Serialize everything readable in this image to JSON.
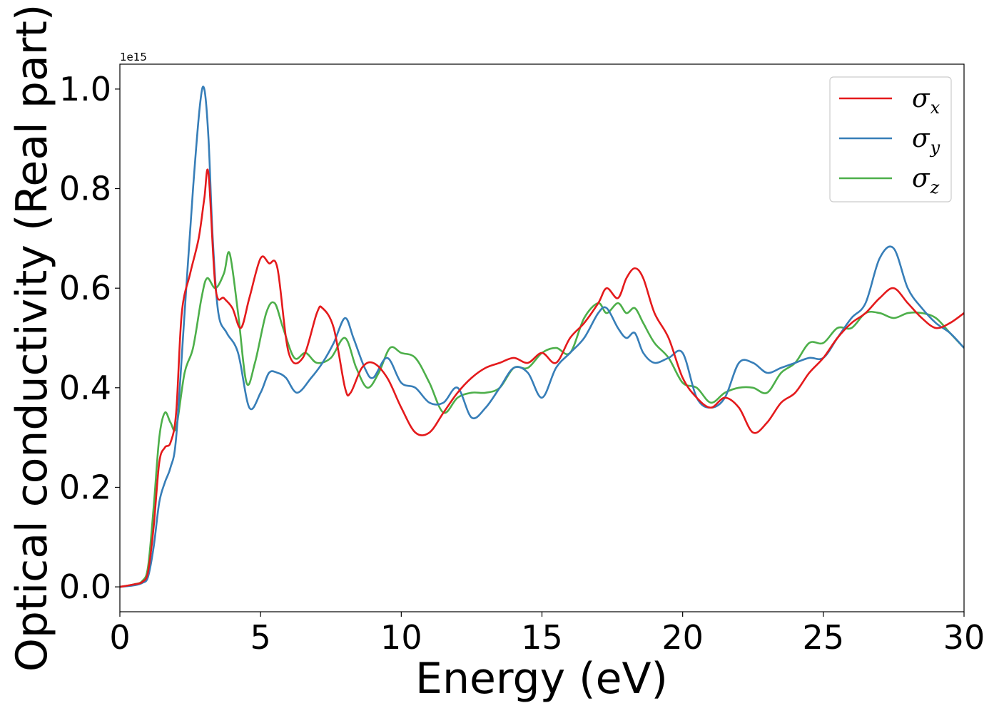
{
  "chart_data": {
    "type": "line",
    "title": "",
    "xlabel": "Energy (eV)",
    "ylabel": "Optical conductivity (Real part)",
    "y_offset_label": "1e15",
    "y_scale": 1000000000000000.0,
    "xlim": [
      0,
      30
    ],
    "ylim": [
      -0.05,
      1.05
    ],
    "xticks": [
      0,
      5,
      10,
      15,
      20,
      25,
      30
    ],
    "xtick_labels": [
      "0",
      "5",
      "10",
      "15",
      "20",
      "25",
      "30"
    ],
    "yticks": [
      0.0,
      0.2,
      0.4,
      0.6,
      0.8,
      1.0
    ],
    "ytick_labels": [
      "0.0",
      "0.2",
      "0.4",
      "0.6",
      "0.8",
      "1.0"
    ],
    "grid": false,
    "legend_position": "top-right",
    "series": [
      {
        "name": "σx",
        "legend_base": "σ",
        "legend_sub": "x",
        "color": "#e41a1c",
        "x": [
          0,
          0.5,
          0.8,
          1.0,
          1.2,
          1.4,
          1.6,
          1.8,
          2.0,
          2.2,
          2.5,
          2.8,
          3.0,
          3.15,
          3.4,
          3.7,
          4.0,
          4.3,
          4.6,
          5.0,
          5.3,
          5.6,
          6.0,
          6.5,
          7.0,
          7.2,
          7.6,
          8.0,
          8.2,
          8.6,
          9.0,
          9.5,
          10.0,
          10.5,
          11.0,
          11.5,
          12.0,
          12.5,
          13.0,
          13.5,
          14.0,
          14.5,
          15.0,
          15.5,
          16.0,
          16.5,
          17.0,
          17.3,
          17.7,
          18.0,
          18.3,
          18.6,
          19.0,
          19.5,
          20.0,
          20.5,
          21.0,
          21.5,
          22.0,
          22.5,
          23.0,
          23.5,
          24.0,
          24.5,
          25.0,
          25.5,
          26.0,
          26.5,
          27.0,
          27.5,
          28.0,
          28.5,
          29.0,
          29.5,
          30.0
        ],
        "y": [
          0,
          0.005,
          0.01,
          0.03,
          0.12,
          0.25,
          0.28,
          0.29,
          0.35,
          0.55,
          0.63,
          0.7,
          0.78,
          0.83,
          0.6,
          0.58,
          0.56,
          0.52,
          0.58,
          0.66,
          0.65,
          0.64,
          0.47,
          0.46,
          0.55,
          0.56,
          0.52,
          0.4,
          0.39,
          0.44,
          0.45,
          0.42,
          0.36,
          0.31,
          0.31,
          0.35,
          0.39,
          0.42,
          0.44,
          0.45,
          0.46,
          0.45,
          0.47,
          0.45,
          0.5,
          0.53,
          0.57,
          0.6,
          0.58,
          0.62,
          0.64,
          0.62,
          0.55,
          0.5,
          0.42,
          0.38,
          0.36,
          0.38,
          0.36,
          0.31,
          0.33,
          0.37,
          0.39,
          0.43,
          0.46,
          0.5,
          0.53,
          0.55,
          0.58,
          0.6,
          0.57,
          0.54,
          0.52,
          0.53,
          0.55
        ]
      },
      {
        "name": "σy",
        "legend_base": "σ",
        "legend_sub": "y",
        "color": "#377eb8",
        "x": [
          0,
          0.5,
          0.8,
          1.0,
          1.2,
          1.4,
          1.6,
          1.8,
          2.0,
          2.3,
          2.6,
          2.85,
          3.0,
          3.15,
          3.3,
          3.5,
          3.8,
          4.2,
          4.6,
          5.0,
          5.3,
          5.6,
          5.9,
          6.3,
          6.8,
          7.2,
          7.6,
          8.0,
          8.3,
          8.7,
          9.0,
          9.5,
          10.0,
          10.5,
          11.0,
          11.5,
          12.0,
          12.5,
          13.0,
          13.5,
          14.0,
          14.5,
          15.0,
          15.5,
          16.0,
          16.5,
          17.0,
          17.3,
          17.7,
          18.0,
          18.3,
          18.6,
          19.0,
          19.5,
          20.0,
          20.5,
          21.0,
          21.5,
          22.0,
          22.5,
          23.0,
          23.5,
          24.0,
          24.5,
          25.0,
          25.5,
          26.0,
          26.5,
          27.0,
          27.5,
          28.0,
          28.5,
          29.0,
          29.5,
          30.0
        ],
        "y": [
          0,
          0.003,
          0.008,
          0.02,
          0.08,
          0.17,
          0.21,
          0.24,
          0.3,
          0.55,
          0.8,
          0.97,
          1.0,
          0.9,
          0.7,
          0.55,
          0.51,
          0.47,
          0.36,
          0.39,
          0.43,
          0.43,
          0.42,
          0.39,
          0.42,
          0.45,
          0.49,
          0.54,
          0.5,
          0.44,
          0.42,
          0.46,
          0.41,
          0.4,
          0.37,
          0.37,
          0.4,
          0.34,
          0.36,
          0.4,
          0.44,
          0.43,
          0.38,
          0.44,
          0.47,
          0.5,
          0.55,
          0.56,
          0.52,
          0.5,
          0.51,
          0.47,
          0.45,
          0.46,
          0.47,
          0.38,
          0.36,
          0.38,
          0.45,
          0.45,
          0.43,
          0.44,
          0.45,
          0.46,
          0.46,
          0.5,
          0.54,
          0.57,
          0.66,
          0.68,
          0.6,
          0.56,
          0.53,
          0.51,
          0.48
        ]
      },
      {
        "name": "σz",
        "legend_base": "σ",
        "legend_sub": "z",
        "color": "#4daf4a",
        "x": [
          0,
          0.5,
          0.8,
          1.0,
          1.2,
          1.4,
          1.6,
          1.8,
          2.0,
          2.3,
          2.6,
          2.9,
          3.1,
          3.4,
          3.7,
          3.9,
          4.2,
          4.5,
          4.8,
          5.2,
          5.5,
          5.8,
          6.2,
          6.6,
          7.0,
          7.5,
          8.0,
          8.4,
          8.8,
          9.2,
          9.6,
          10.0,
          10.5,
          11.0,
          11.5,
          12.0,
          12.5,
          13.0,
          13.5,
          14.0,
          14.5,
          15.0,
          15.5,
          16.0,
          16.5,
          17.0,
          17.3,
          17.7,
          18.0,
          18.3,
          18.6,
          19.0,
          19.5,
          20.0,
          20.5,
          21.0,
          21.5,
          22.0,
          22.5,
          23.0,
          23.5,
          24.0,
          24.5,
          25.0,
          25.5,
          26.0,
          26.5,
          27.0,
          27.5,
          28.0,
          28.5,
          29.0,
          29.5,
          30.0
        ],
        "y": [
          0,
          0.005,
          0.012,
          0.04,
          0.16,
          0.3,
          0.35,
          0.33,
          0.32,
          0.43,
          0.48,
          0.58,
          0.62,
          0.6,
          0.63,
          0.67,
          0.55,
          0.41,
          0.45,
          0.55,
          0.57,
          0.52,
          0.46,
          0.47,
          0.45,
          0.46,
          0.5,
          0.44,
          0.4,
          0.43,
          0.48,
          0.47,
          0.46,
          0.41,
          0.35,
          0.38,
          0.39,
          0.39,
          0.4,
          0.44,
          0.44,
          0.47,
          0.48,
          0.47,
          0.54,
          0.57,
          0.55,
          0.57,
          0.55,
          0.56,
          0.53,
          0.49,
          0.46,
          0.41,
          0.4,
          0.37,
          0.39,
          0.4,
          0.4,
          0.39,
          0.43,
          0.45,
          0.49,
          0.49,
          0.52,
          0.52,
          0.55,
          0.55,
          0.54,
          0.55,
          0.55,
          0.54,
          0.51,
          0.48
        ]
      }
    ]
  }
}
